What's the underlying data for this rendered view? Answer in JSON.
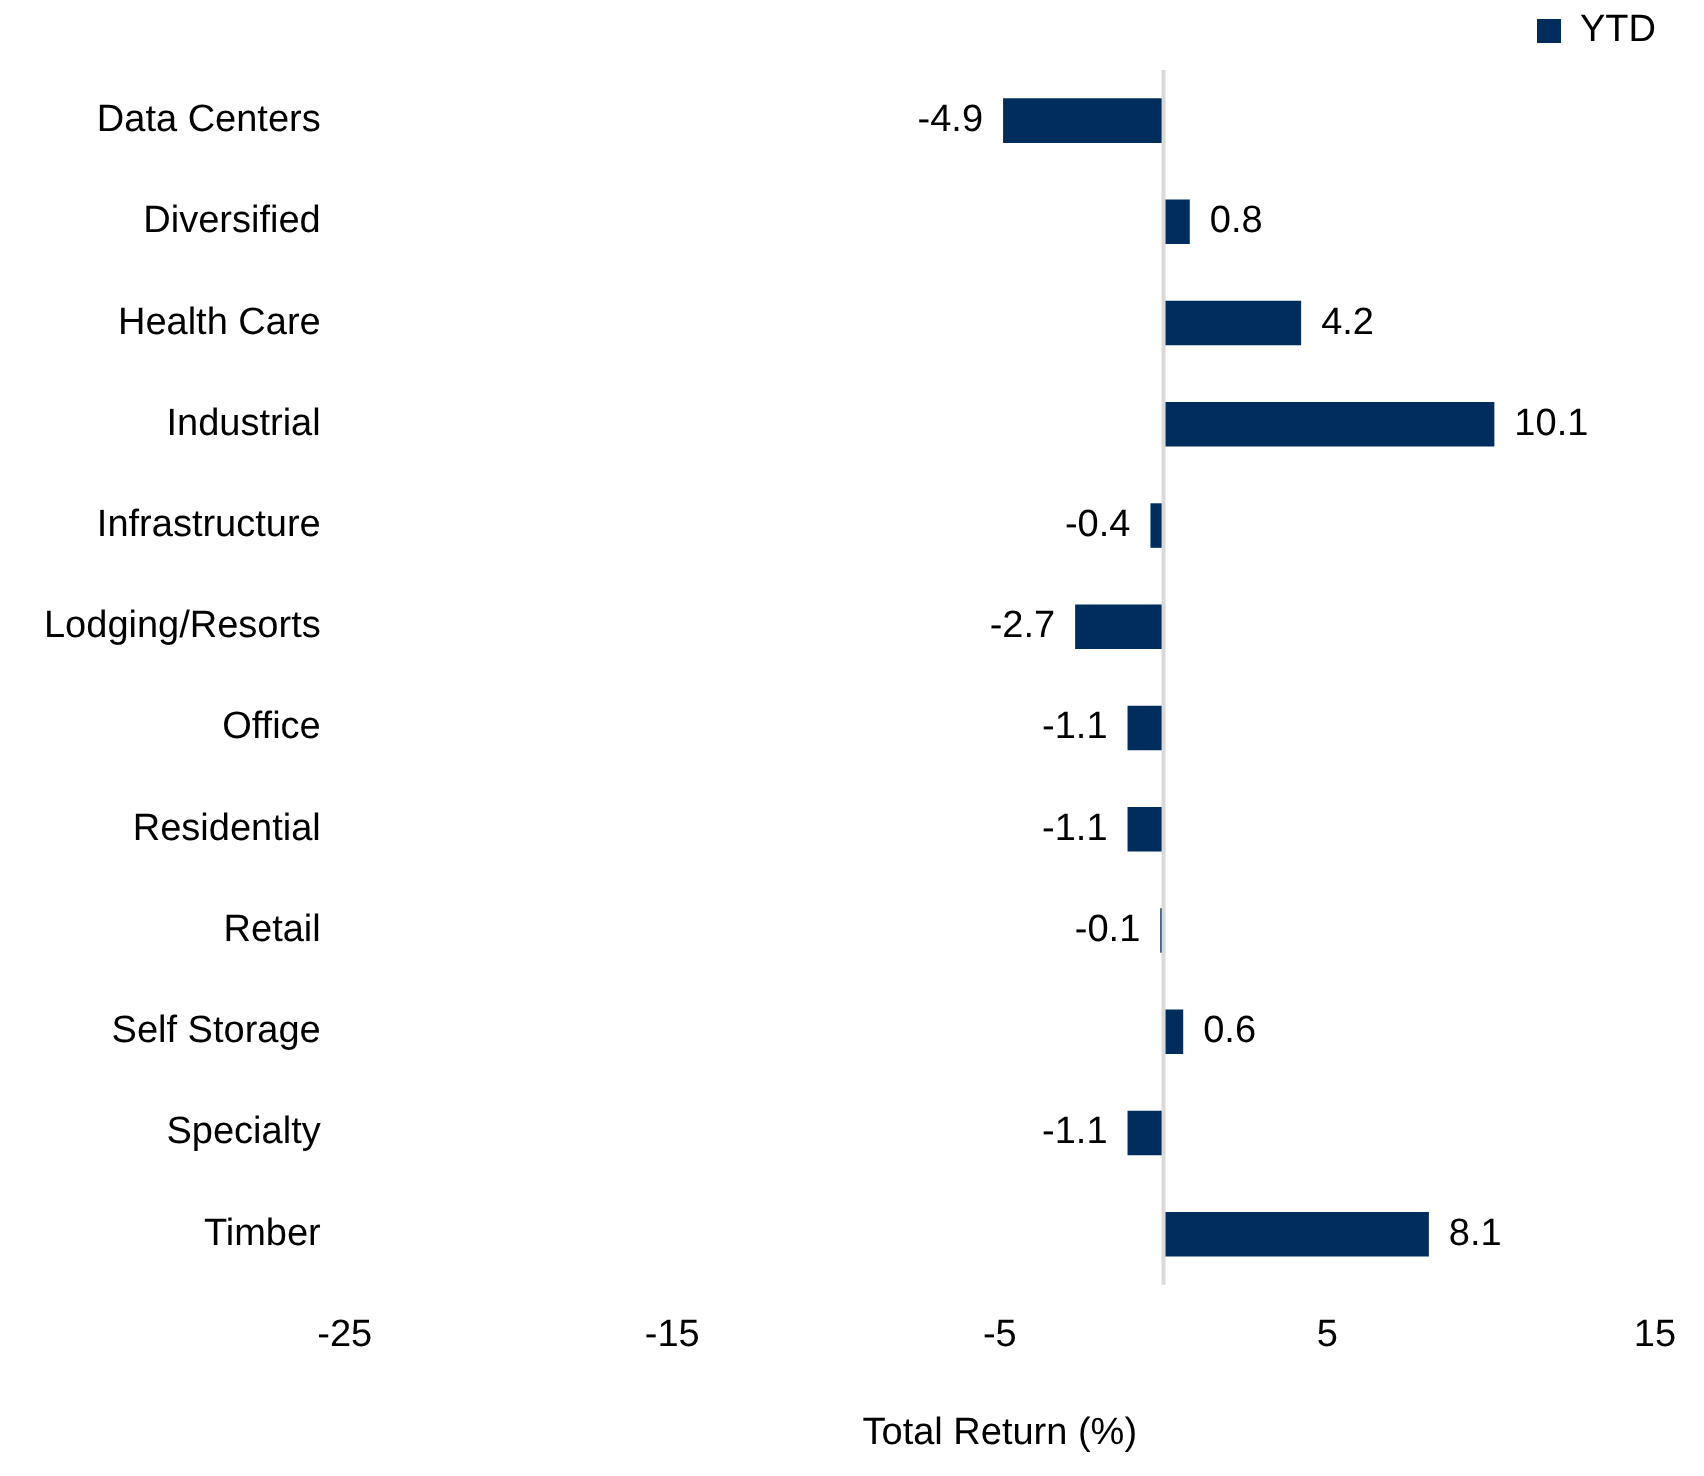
{
  "chart_data": {
    "type": "bar",
    "orientation": "horizontal",
    "xlabel": "Total Return (%)",
    "categories": [
      "Data Centers",
      "Diversified",
      "Health Care",
      "Industrial",
      "Infrastructure",
      "Lodging/Resorts",
      "Office",
      "Residential",
      "Retail",
      "Self Storage",
      "Specialty",
      "Timber"
    ],
    "series": [
      {
        "name": "YTD",
        "color": "#002d5c",
        "values": [
          -4.9,
          0.8,
          4.2,
          10.1,
          -0.4,
          -2.7,
          -1.1,
          -1.1,
          -0.1,
          0.6,
          -1.1,
          8.1
        ]
      }
    ],
    "xlim": [
      -25,
      15
    ],
    "xticks": [
      -25,
      -15,
      -5,
      5,
      15
    ],
    "grid": false,
    "legend": "top right",
    "data_labels": true
  }
}
